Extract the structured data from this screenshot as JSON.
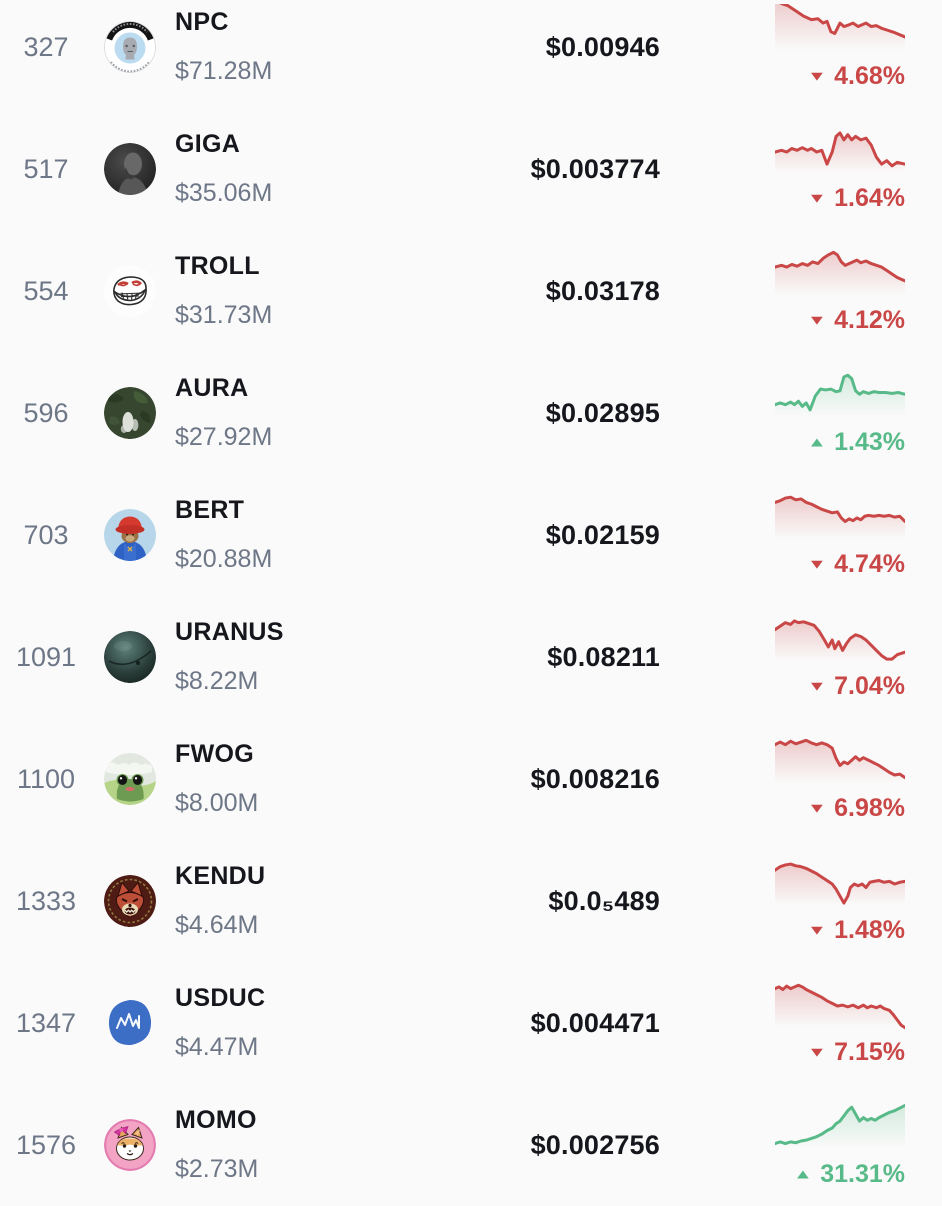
{
  "theme": {
    "background": "#fafafa",
    "text_primary": "#15171c",
    "text_secondary": "#6e7787",
    "down_color": "#c94847",
    "up_color": "#58ba88",
    "down_glyph": "▼",
    "up_glyph": "▲"
  },
  "list": {
    "rows": [
      {
        "rank": "327",
        "symbol": "NPC",
        "market_cap": "$71.28M",
        "price": "$0.00946",
        "change": "4.68%",
        "direction": "down",
        "icon": "npc-face-icon",
        "sparkline": [
          [
            0,
            -4
          ],
          [
            6,
            0
          ],
          [
            10,
            2
          ],
          [
            16,
            8
          ],
          [
            22,
            14
          ],
          [
            28,
            18
          ],
          [
            33,
            17
          ],
          [
            37,
            22
          ],
          [
            40,
            20
          ],
          [
            43,
            32
          ],
          [
            46,
            34
          ],
          [
            50,
            22
          ],
          [
            53,
            26
          ],
          [
            57,
            24
          ],
          [
            60,
            22
          ],
          [
            64,
            26
          ],
          [
            67,
            24
          ],
          [
            70,
            22
          ],
          [
            74,
            26
          ],
          [
            78,
            25
          ],
          [
            82,
            28
          ],
          [
            86,
            30
          ],
          [
            92,
            33
          ],
          [
            100,
            38
          ]
        ]
      },
      {
        "rank": "517",
        "symbol": "GIGA",
        "market_cap": "$35.06M",
        "price": "$0.003774",
        "change": "1.64%",
        "direction": "down",
        "icon": "giga-chad-icon",
        "sparkline": [
          [
            0,
            30
          ],
          [
            5,
            28
          ],
          [
            9,
            30
          ],
          [
            13,
            26
          ],
          [
            17,
            28
          ],
          [
            21,
            25
          ],
          [
            25,
            28
          ],
          [
            28,
            26
          ],
          [
            32,
            30
          ],
          [
            36,
            28
          ],
          [
            40,
            44
          ],
          [
            44,
            30
          ],
          [
            47,
            12
          ],
          [
            50,
            8
          ],
          [
            53,
            16
          ],
          [
            56,
            10
          ],
          [
            59,
            16
          ],
          [
            62,
            12
          ],
          [
            66,
            16
          ],
          [
            70,
            14
          ],
          [
            74,
            22
          ],
          [
            78,
            36
          ],
          [
            82,
            44
          ],
          [
            86,
            40
          ],
          [
            90,
            46
          ],
          [
            94,
            42
          ],
          [
            100,
            44
          ]
        ]
      },
      {
        "rank": "554",
        "symbol": "TROLL",
        "market_cap": "$31.73M",
        "price": "$0.03178",
        "change": "4.12%",
        "direction": "down",
        "icon": "troll-face-icon",
        "sparkline": [
          [
            0,
            22
          ],
          [
            5,
            20
          ],
          [
            9,
            22
          ],
          [
            13,
            19
          ],
          [
            17,
            21
          ],
          [
            21,
            18
          ],
          [
            25,
            20
          ],
          [
            29,
            16
          ],
          [
            33,
            18
          ],
          [
            37,
            12
          ],
          [
            41,
            8
          ],
          [
            45,
            5
          ],
          [
            48,
            8
          ],
          [
            51,
            16
          ],
          [
            54,
            20
          ],
          [
            57,
            18
          ],
          [
            60,
            16
          ],
          [
            63,
            14
          ],
          [
            66,
            17
          ],
          [
            70,
            15
          ],
          [
            74,
            18
          ],
          [
            78,
            20
          ],
          [
            82,
            22
          ],
          [
            86,
            26
          ],
          [
            90,
            30
          ],
          [
            94,
            34
          ],
          [
            100,
            38
          ]
        ]
      },
      {
        "rank": "596",
        "symbol": "AURA",
        "market_cap": "$27.92M",
        "price": "$0.02895",
        "change": "1.43%",
        "direction": "up",
        "icon": "aura-forest-icon",
        "sparkline": [
          [
            0,
            40
          ],
          [
            4,
            38
          ],
          [
            8,
            40
          ],
          [
            12,
            37
          ],
          [
            15,
            40
          ],
          [
            18,
            36
          ],
          [
            21,
            42
          ],
          [
            24,
            38
          ],
          [
            27,
            46
          ],
          [
            31,
            30
          ],
          [
            35,
            22
          ],
          [
            39,
            23
          ],
          [
            43,
            22
          ],
          [
            47,
            25
          ],
          [
            50,
            24
          ],
          [
            53,
            8
          ],
          [
            56,
            6
          ],
          [
            59,
            10
          ],
          [
            62,
            24
          ],
          [
            65,
            28
          ],
          [
            68,
            25
          ],
          [
            72,
            27
          ],
          [
            76,
            25
          ],
          [
            80,
            26
          ],
          [
            85,
            26
          ],
          [
            90,
            27
          ],
          [
            95,
            26
          ],
          [
            100,
            28
          ]
        ]
      },
      {
        "rank": "703",
        "symbol": "BERT",
        "market_cap": "$20.88M",
        "price": "$0.02159",
        "change": "4.74%",
        "direction": "down",
        "icon": "bert-bear-icon",
        "sparkline": [
          [
            0,
            12
          ],
          [
            4,
            10
          ],
          [
            8,
            7
          ],
          [
            12,
            6
          ],
          [
            16,
            9
          ],
          [
            20,
            8
          ],
          [
            24,
            12
          ],
          [
            28,
            14
          ],
          [
            32,
            17
          ],
          [
            36,
            20
          ],
          [
            40,
            22
          ],
          [
            44,
            24
          ],
          [
            48,
            23
          ],
          [
            51,
            30
          ],
          [
            54,
            34
          ],
          [
            57,
            31
          ],
          [
            60,
            33
          ],
          [
            63,
            30
          ],
          [
            66,
            32
          ],
          [
            69,
            28
          ],
          [
            72,
            27
          ],
          [
            76,
            28
          ],
          [
            80,
            27
          ],
          [
            84,
            28
          ],
          [
            88,
            27
          ],
          [
            92,
            29
          ],
          [
            96,
            28
          ],
          [
            100,
            34
          ]
        ]
      },
      {
        "rank": "1091",
        "symbol": "URANUS",
        "market_cap": "$8.22M",
        "price": "$0.08211",
        "change": "7.04%",
        "direction": "down",
        "icon": "uranus-planet-icon",
        "sparkline": [
          [
            0,
            18
          ],
          [
            4,
            14
          ],
          [
            8,
            10
          ],
          [
            12,
            12
          ],
          [
            15,
            8
          ],
          [
            18,
            10
          ],
          [
            22,
            9
          ],
          [
            26,
            11
          ],
          [
            30,
            13
          ],
          [
            34,
            20
          ],
          [
            38,
            30
          ],
          [
            41,
            38
          ],
          [
            44,
            30
          ],
          [
            46,
            40
          ],
          [
            49,
            32
          ],
          [
            52,
            42
          ],
          [
            55,
            34
          ],
          [
            58,
            28
          ],
          [
            62,
            24
          ],
          [
            66,
            26
          ],
          [
            70,
            30
          ],
          [
            74,
            36
          ],
          [
            78,
            42
          ],
          [
            82,
            48
          ],
          [
            86,
            52
          ],
          [
            90,
            52
          ],
          [
            94,
            47
          ],
          [
            100,
            44
          ]
        ]
      },
      {
        "rank": "1100",
        "symbol": "FWOG",
        "market_cap": "$8.00M",
        "price": "$0.008216",
        "change": "6.98%",
        "direction": "down",
        "icon": "fwog-frog-icon",
        "sparkline": [
          [
            0,
            10
          ],
          [
            4,
            7
          ],
          [
            8,
            10
          ],
          [
            12,
            6
          ],
          [
            16,
            9
          ],
          [
            20,
            7
          ],
          [
            24,
            5
          ],
          [
            28,
            8
          ],
          [
            32,
            10
          ],
          [
            36,
            8
          ],
          [
            40,
            10
          ],
          [
            44,
            14
          ],
          [
            47,
            26
          ],
          [
            50,
            34
          ],
          [
            53,
            30
          ],
          [
            56,
            32
          ],
          [
            59,
            28
          ],
          [
            62,
            24
          ],
          [
            65,
            28
          ],
          [
            68,
            25
          ],
          [
            72,
            28
          ],
          [
            76,
            31
          ],
          [
            80,
            34
          ],
          [
            84,
            38
          ],
          [
            88,
            42
          ],
          [
            92,
            45
          ],
          [
            96,
            44
          ],
          [
            100,
            48
          ]
        ]
      },
      {
        "rank": "1333",
        "symbol": "KENDU",
        "market_cap": "$4.64M",
        "price": "$0.0₅489",
        "change": "1.48%",
        "direction": "down",
        "icon": "kendu-dog-icon",
        "sparkline": [
          [
            0,
            14
          ],
          [
            4,
            10
          ],
          [
            8,
            8
          ],
          [
            12,
            7
          ],
          [
            16,
            9
          ],
          [
            20,
            10
          ],
          [
            24,
            12
          ],
          [
            28,
            15
          ],
          [
            32,
            18
          ],
          [
            36,
            22
          ],
          [
            40,
            26
          ],
          [
            44,
            30
          ],
          [
            47,
            36
          ],
          [
            50,
            44
          ],
          [
            53,
            52
          ],
          [
            56,
            44
          ],
          [
            58,
            34
          ],
          [
            61,
            30
          ],
          [
            64,
            32
          ],
          [
            67,
            30
          ],
          [
            70,
            34
          ],
          [
            73,
            28
          ],
          [
            76,
            27
          ],
          [
            80,
            26
          ],
          [
            84,
            28
          ],
          [
            88,
            27
          ],
          [
            92,
            30
          ],
          [
            96,
            28
          ],
          [
            100,
            27
          ]
        ]
      },
      {
        "rank": "1347",
        "symbol": "USDUC",
        "market_cap": "$4.47M",
        "price": "$0.004471",
        "change": "7.15%",
        "direction": "down",
        "icon": "usduc-chart-icon",
        "sparkline": [
          [
            0,
            10
          ],
          [
            3,
            8
          ],
          [
            6,
            11
          ],
          [
            9,
            7
          ],
          [
            12,
            10
          ],
          [
            15,
            8
          ],
          [
            18,
            6
          ],
          [
            21,
            8
          ],
          [
            24,
            11
          ],
          [
            28,
            14
          ],
          [
            32,
            17
          ],
          [
            36,
            20
          ],
          [
            40,
            24
          ],
          [
            44,
            27
          ],
          [
            48,
            30
          ],
          [
            52,
            29
          ],
          [
            56,
            31
          ],
          [
            60,
            29
          ],
          [
            64,
            32
          ],
          [
            68,
            29
          ],
          [
            71,
            32
          ],
          [
            74,
            30
          ],
          [
            78,
            32
          ],
          [
            81,
            30
          ],
          [
            84,
            33
          ],
          [
            88,
            35
          ],
          [
            91,
            40
          ],
          [
            94,
            46
          ],
          [
            97,
            52
          ],
          [
            100,
            55
          ]
        ]
      },
      {
        "rank": "1576",
        "symbol": "MOMO",
        "market_cap": "$2.73M",
        "price": "$0.002756",
        "change": "31.31%",
        "direction": "up",
        "icon": "momo-dog-icon",
        "sparkline": [
          [
            0,
            48
          ],
          [
            4,
            46
          ],
          [
            8,
            48
          ],
          [
            12,
            46
          ],
          [
            16,
            47
          ],
          [
            20,
            45
          ],
          [
            24,
            44
          ],
          [
            28,
            42
          ],
          [
            32,
            40
          ],
          [
            36,
            37
          ],
          [
            40,
            33
          ],
          [
            44,
            30
          ],
          [
            47,
            25
          ],
          [
            50,
            22
          ],
          [
            53,
            16
          ],
          [
            56,
            10
          ],
          [
            59,
            6
          ],
          [
            62,
            14
          ],
          [
            65,
            22
          ],
          [
            68,
            18
          ],
          [
            71,
            21
          ],
          [
            74,
            19
          ],
          [
            77,
            21
          ],
          [
            80,
            18
          ],
          [
            84,
            15
          ],
          [
            88,
            12
          ],
          [
            92,
            10
          ],
          [
            96,
            7
          ],
          [
            100,
            4
          ]
        ]
      }
    ]
  }
}
